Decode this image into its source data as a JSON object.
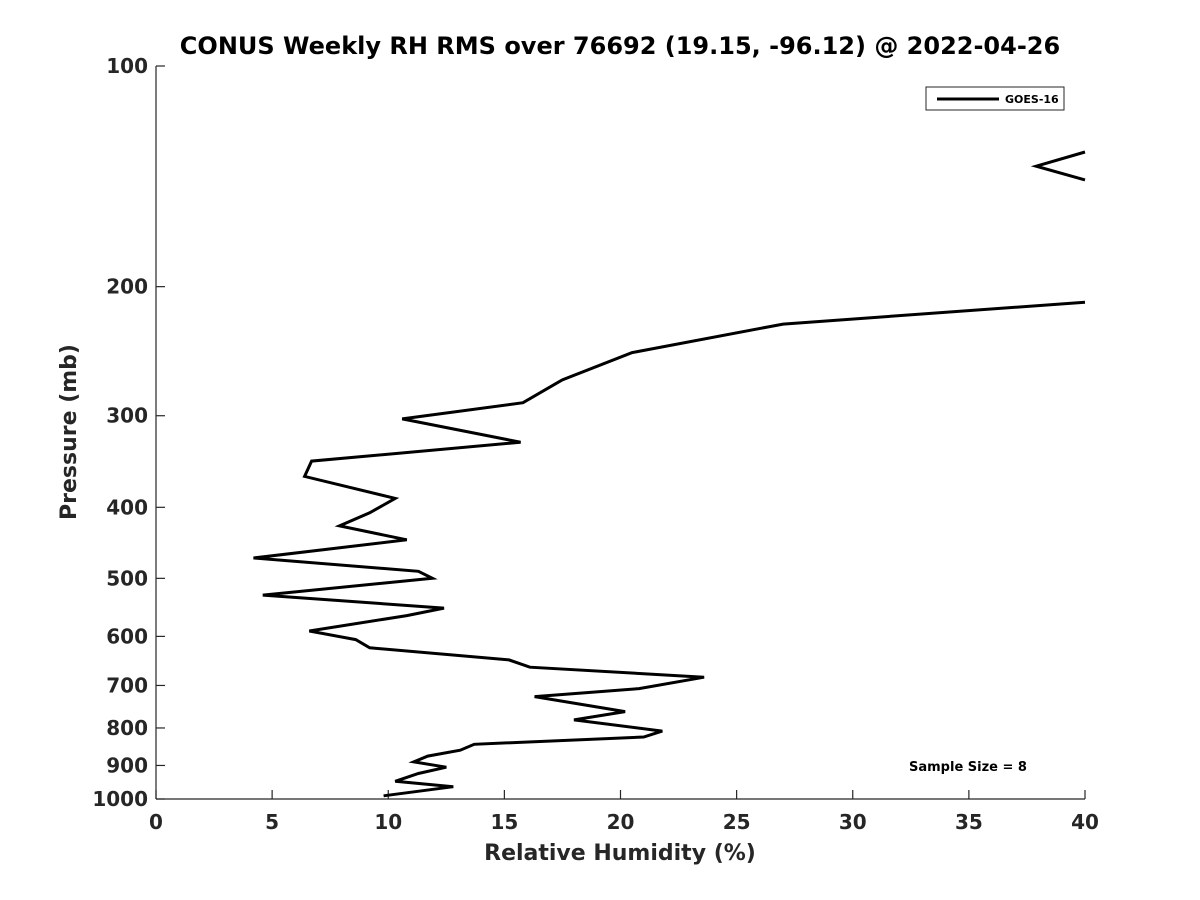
{
  "chart_data": {
    "type": "line",
    "title": "CONUS Weekly RH RMS over 76692 (19.15, -96.12) @ 2022-04-26",
    "xlabel": "Relative Humidity (%)",
    "ylabel": "Pressure (mb)",
    "xlim": [
      0,
      40
    ],
    "ylim": [
      1000,
      100
    ],
    "y_scale": "log",
    "y_reversed": true,
    "grid": false,
    "legend_position": "top-right",
    "x_ticks": [
      0,
      5,
      10,
      15,
      20,
      25,
      30,
      35,
      40
    ],
    "y_ticks": [
      100,
      200,
      300,
      400,
      500,
      600,
      700,
      800,
      900,
      1000
    ],
    "annotation": "Sample Size = 8",
    "series": [
      {
        "name": "GOES-16",
        "color": "#000000",
        "segments": [
          [
            [
              40,
              131
            ],
            [
              37.9,
              137
            ],
            [
              40,
              143
            ]
          ],
          [
            [
              40,
              210
            ],
            [
              27.0,
              225
            ],
            [
              20.5,
              246
            ],
            [
              17.5,
              268
            ],
            [
              15.8,
              288
            ],
            [
              10.6,
              303
            ],
            [
              15.7,
              326
            ],
            [
              6.7,
              346
            ],
            [
              6.4,
              363
            ],
            [
              10.3,
              389
            ],
            [
              9.2,
              407
            ],
            [
              7.9,
              424
            ],
            [
              10.8,
              443
            ],
            [
              4.2,
              469
            ],
            [
              11.3,
              489
            ],
            [
              11.9,
              500
            ],
            [
              4.6,
              527
            ],
            [
              12.4,
              549
            ],
            [
              10.8,
              562
            ],
            [
              6.6,
              590
            ],
            [
              8.6,
              606
            ],
            [
              9.2,
              622
            ],
            [
              15.2,
              646
            ],
            [
              16.1,
              661
            ],
            [
              23.6,
              682
            ],
            [
              20.8,
              707
            ],
            [
              16.3,
              725
            ],
            [
              20.2,
              760
            ],
            [
              18.0,
              780
            ],
            [
              21.8,
              808
            ],
            [
              21.0,
              823
            ],
            [
              13.7,
              842
            ],
            [
              13.1,
              858
            ],
            [
              11.7,
              874
            ],
            [
              11.1,
              890
            ],
            [
              12.5,
              905
            ],
            [
              11.3,
              923
            ],
            [
              10.3,
              946
            ],
            [
              12.8,
              962
            ],
            [
              9.8,
              990
            ]
          ]
        ]
      }
    ]
  }
}
